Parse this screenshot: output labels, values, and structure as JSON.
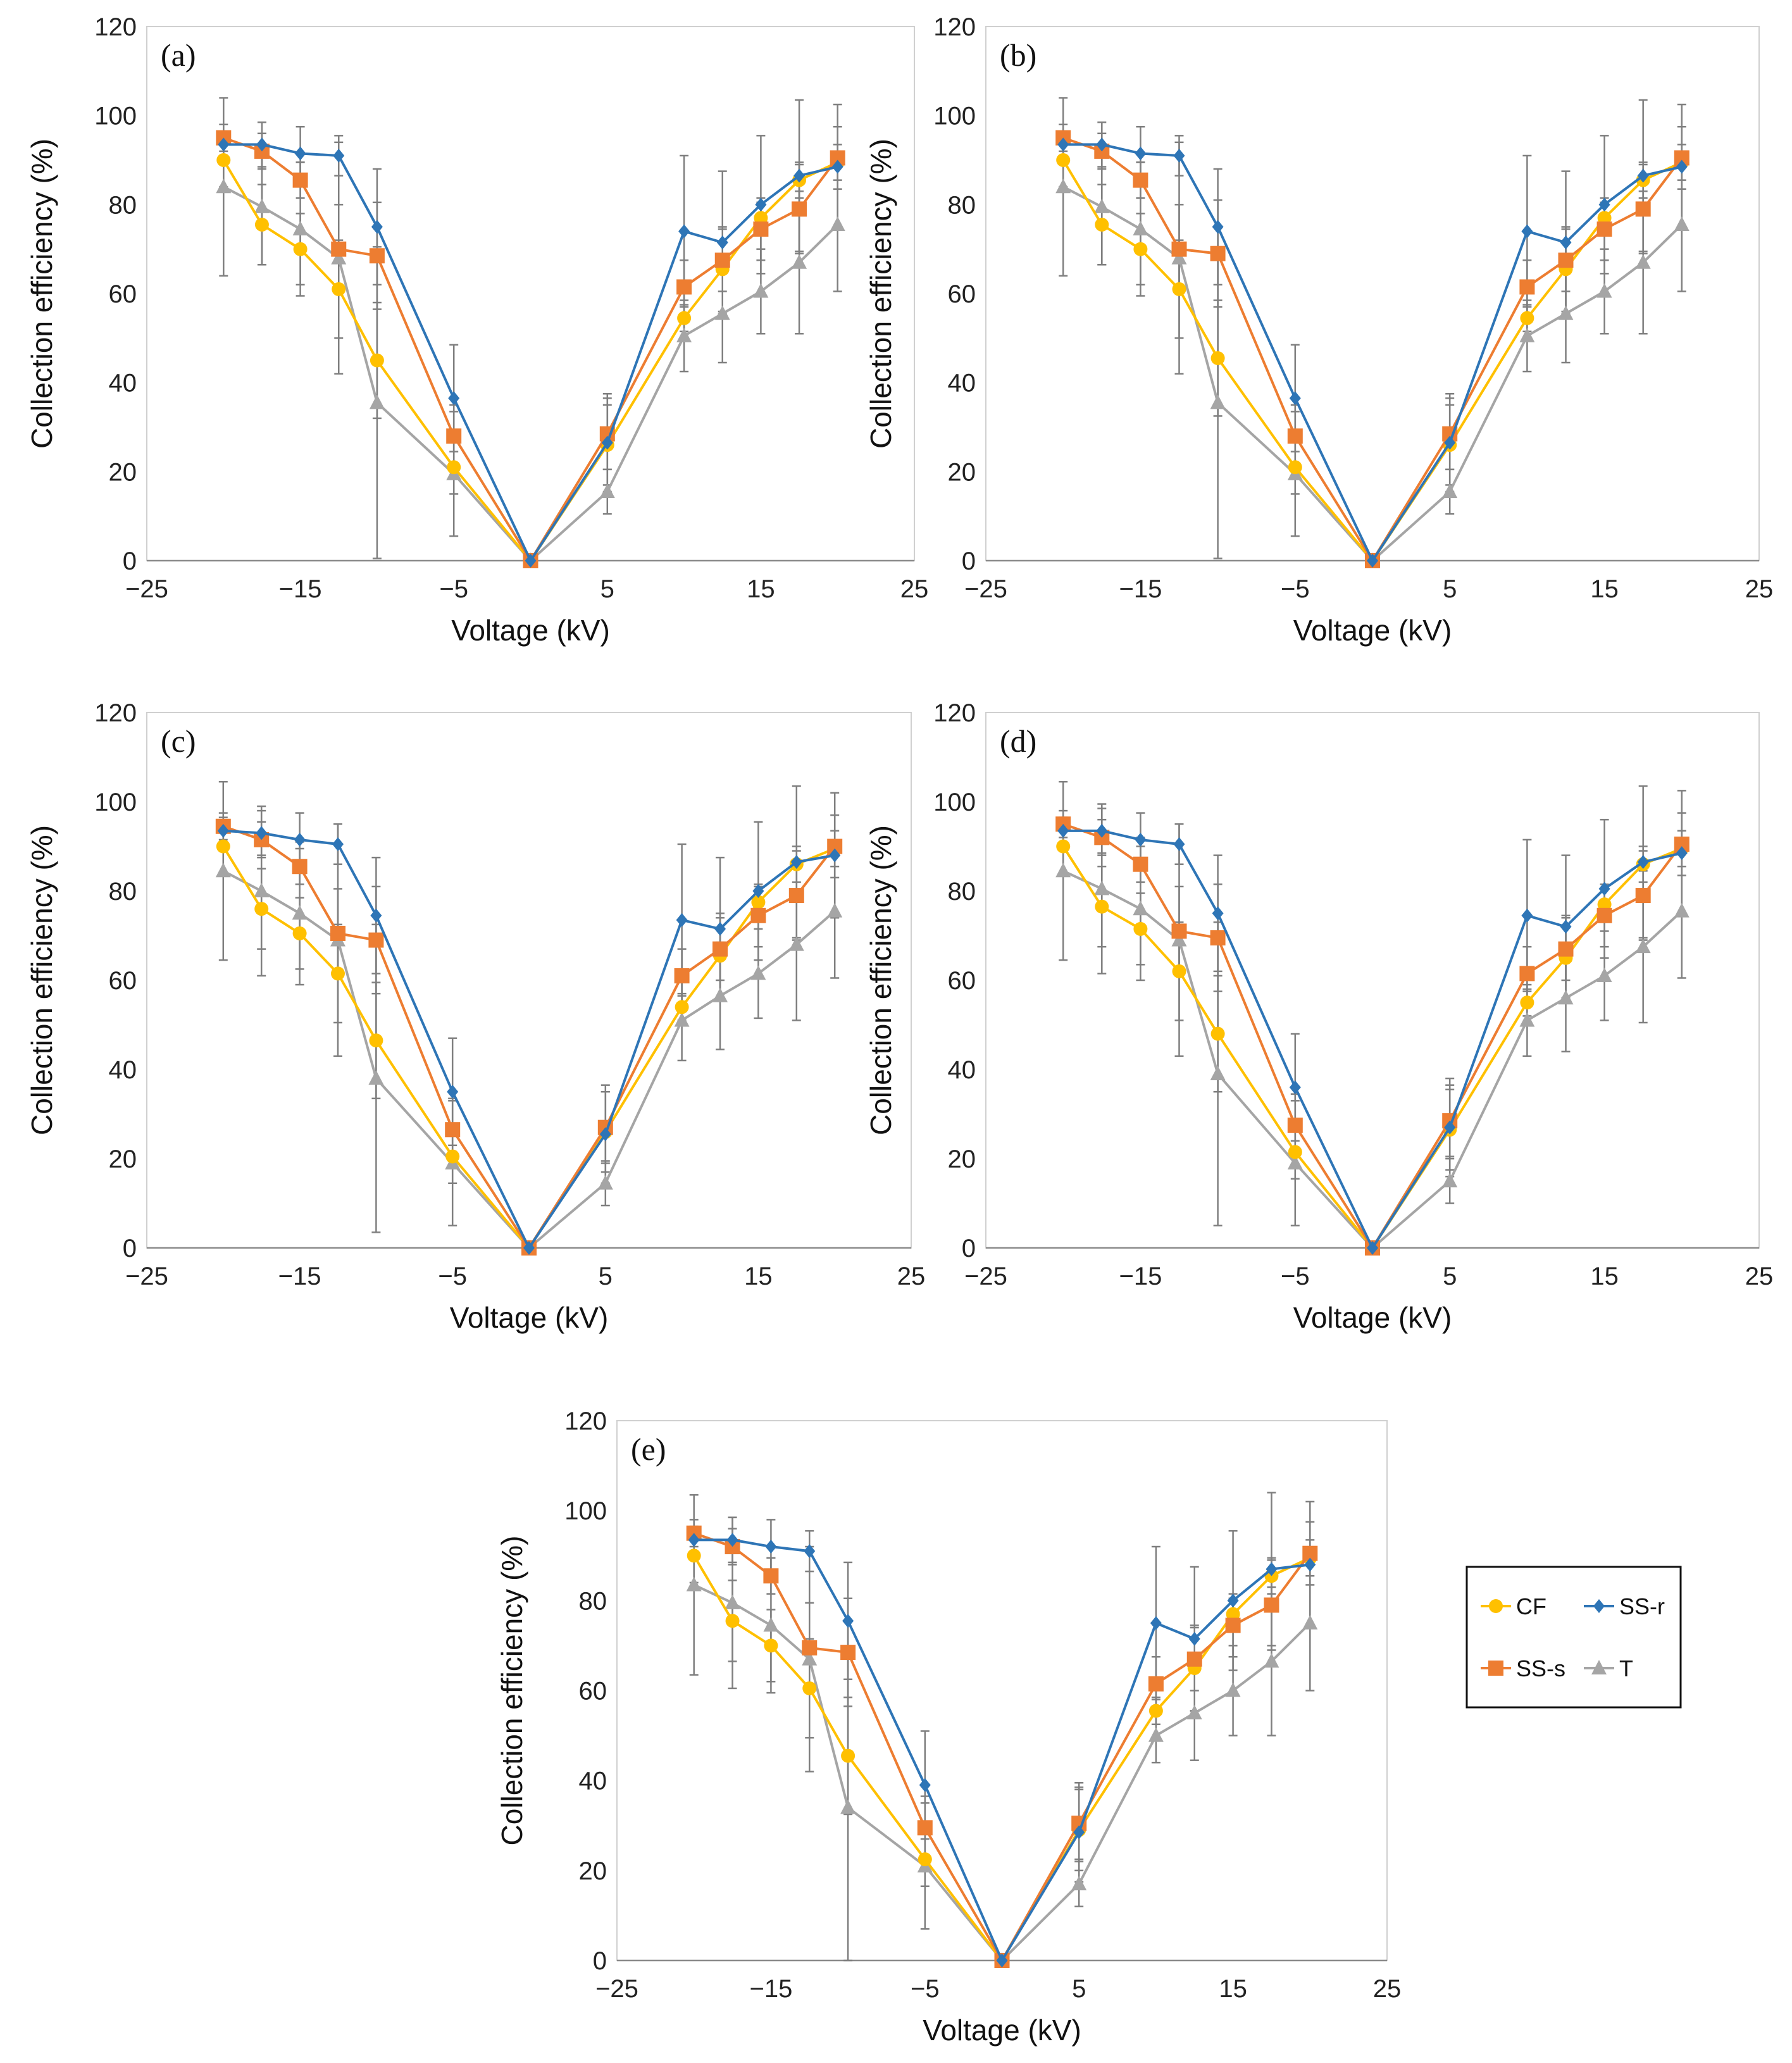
{
  "chart_data": {
    "type": "line",
    "xlabel": "Voltage (kV)",
    "ylabel": "Collection efficiency (%)",
    "xlim": [
      -25,
      25
    ],
    "ylim": [
      0,
      120
    ],
    "xticks": [
      -25,
      -15,
      -5,
      5,
      15,
      25
    ],
    "yticks": [
      0,
      20,
      40,
      60,
      80,
      100,
      120
    ],
    "x": [
      -20,
      -17.5,
      -15,
      -12.5,
      -10,
      -5,
      0,
      5,
      10,
      12.5,
      15,
      17.5,
      20
    ],
    "legend": {
      "placement": "right of panel (e)",
      "entries": [
        {
          "name": "CF",
          "color": "#FFC000",
          "marker": "circle"
        },
        {
          "name": "SS-r",
          "color": "#2E75B6",
          "marker": "diamond"
        },
        {
          "name": "SS-s",
          "color": "#ED7D31",
          "marker": "square"
        },
        {
          "name": "T",
          "color": "#A5A5A5",
          "marker": "triangle"
        }
      ]
    },
    "panels": [
      {
        "label": "(a)",
        "series": [
          {
            "name": "T",
            "values": [
              84,
              79.5,
              74.5,
              68,
              35.5,
              19.5,
              0,
              15.5,
              50.5,
              55.5,
              60.5,
              67,
              75.5
            ],
            "errors": [
              20,
              13,
              15,
              26,
              35,
              14,
              0,
              5,
              8,
              11,
              9.5,
              16,
              15
            ]
          },
          {
            "name": "CF",
            "values": [
              90,
              75.5,
              70,
              61,
              45,
              21,
              0,
              26,
              54.5,
              65.5,
              77,
              85.5,
              89.5
            ],
            "errors": [
              6,
              9,
              8,
              11,
              13,
              6,
              0,
              9,
              3,
              9.5,
              3.5,
              4,
              4
            ]
          },
          {
            "name": "SS-s",
            "values": [
              95,
              92,
              85.5,
              70,
              68.5,
              28,
              0,
              28.5,
              61.5,
              67.5,
              74.5,
              79,
              90.5
            ],
            "errors": [
              3,
              4,
              4,
              10,
              12,
              7,
              0,
              8,
              6,
              7,
              7,
              10,
              7
            ]
          },
          {
            "name": "SS-r",
            "values": [
              93.5,
              93.5,
              91.5,
              91,
              75,
              36.5,
              0,
              26.5,
              74,
              71.5,
              80,
              86.5,
              88.5
            ],
            "errors": [
              3,
              5,
              6,
              4.5,
              13,
              12,
              0,
              11,
              17,
              16,
              15.5,
              17,
              14
            ]
          }
        ]
      },
      {
        "label": "(b)",
        "series": [
          {
            "name": "T",
            "values": [
              84,
              79.5,
              74.5,
              68,
              35.5,
              19.5,
              0,
              15.5,
              50.5,
              55.5,
              60.5,
              67,
              75.5
            ],
            "errors": [
              20,
              13,
              15,
              26,
              35,
              14,
              0,
              5,
              8,
              11,
              9.5,
              16,
              15
            ]
          },
          {
            "name": "CF",
            "values": [
              90,
              75.5,
              70,
              61,
              45.5,
              21,
              0,
              26,
              54.5,
              65.5,
              77,
              85.5,
              89.5
            ],
            "errors": [
              6,
              9,
              8,
              11,
              13,
              6,
              0,
              9,
              3,
              9.5,
              3.5,
              4,
              4
            ]
          },
          {
            "name": "SS-s",
            "values": [
              95,
              92,
              85.5,
              70,
              69,
              28,
              0,
              28.5,
              61.5,
              67.5,
              74.5,
              79,
              90.5
            ],
            "errors": [
              3,
              4,
              4,
              10,
              12,
              7,
              0,
              8,
              6,
              7,
              7,
              10,
              7
            ]
          },
          {
            "name": "SS-r",
            "values": [
              93.5,
              93.5,
              91.5,
              91,
              75,
              36.5,
              0,
              26.5,
              74,
              71.5,
              80,
              86.5,
              88.5
            ],
            "errors": [
              3,
              5,
              6,
              4.5,
              13,
              12,
              0,
              11,
              17,
              16,
              15.5,
              17,
              14
            ]
          }
        ]
      },
      {
        "label": "(c)",
        "series": [
          {
            "name": "T",
            "values": [
              84.5,
              80,
              75,
              69,
              38,
              19,
              0,
              14.5,
              51,
              56.5,
              61.5,
              68,
              75.5
            ],
            "errors": [
              20,
              19,
              16,
              26,
              34.5,
              14,
              0,
              5,
              9,
              12,
              10,
              17,
              15
            ]
          },
          {
            "name": "CF",
            "values": [
              90,
              76,
              70.5,
              61.5,
              46.5,
              20.5,
              0,
              26,
              54,
              65.5,
              77.5,
              86,
              89.5
            ],
            "errors": [
              6,
              9,
              8,
              11,
              13,
              6,
              0,
              9,
              3,
              9.5,
              3.5,
              4,
              4
            ]
          },
          {
            "name": "SS-s",
            "values": [
              94.5,
              91.5,
              85.5,
              70.5,
              69,
              26.5,
              0,
              27,
              61,
              67,
              74.5,
              79,
              90
            ],
            "errors": [
              3,
              4,
              4,
              10,
              12,
              7,
              0,
              8,
              6,
              7,
              7,
              10,
              7
            ]
          },
          {
            "name": "SS-r",
            "values": [
              93.5,
              93,
              91.5,
              90.5,
              74.5,
              35,
              0,
              25.5,
              73.5,
              71.5,
              80,
              86.5,
              88
            ],
            "errors": [
              3,
              5,
              6,
              4.5,
              13,
              12,
              0,
              11,
              17,
              16,
              15.5,
              17,
              14
            ]
          }
        ]
      },
      {
        "label": "(d)",
        "series": [
          {
            "name": "T",
            "values": [
              84.5,
              80.5,
              76,
              69,
              39,
              19,
              0,
              15,
              51,
              56,
              61,
              67.5,
              75.5
            ],
            "errors": [
              20,
              19,
              16,
              26,
              34,
              14,
              0,
              5,
              8,
              12,
              10,
              17,
              15
            ]
          },
          {
            "name": "CF",
            "values": [
              90,
              76.5,
              71.5,
              62,
              48,
              21.5,
              0,
              26.5,
              55,
              65,
              77,
              86,
              89.5
            ],
            "errors": [
              6,
              9,
              8,
              11,
              13,
              6,
              0,
              9,
              3,
              9.5,
              3.5,
              4,
              4
            ]
          },
          {
            "name": "SS-s",
            "values": [
              95,
              92,
              86,
              71,
              69.5,
              27.5,
              0,
              28.5,
              61.5,
              67,
              74.5,
              79,
              90.5
            ],
            "errors": [
              3,
              4,
              4,
              10,
              12,
              7,
              0,
              8,
              6,
              7,
              7,
              10,
              7
            ]
          },
          {
            "name": "SS-r",
            "values": [
              93.5,
              93.5,
              91.5,
              90.5,
              75,
              36,
              0,
              27,
              74.5,
              72,
              80.5,
              86.5,
              88.5
            ],
            "errors": [
              3,
              5,
              6,
              4.5,
              13,
              12,
              0,
              11,
              17,
              16,
              15.5,
              17,
              14
            ]
          }
        ]
      },
      {
        "label": "(e)",
        "series": [
          {
            "name": "T",
            "values": [
              83.5,
              79.5,
              74.5,
              67,
              34,
              21,
              0,
              17,
              50,
              55,
              60,
              66.5,
              75
            ],
            "errors": [
              20,
              19,
              15,
              25,
              34,
              14,
              0,
              5,
              6,
              10.5,
              10,
              16.5,
              15
            ]
          },
          {
            "name": "CF",
            "values": [
              90,
              75.5,
              70,
              60.5,
              45.5,
              22.5,
              0,
              29,
              55.5,
              65,
              77,
              85.5,
              89.5
            ],
            "errors": [
              6,
              9,
              8,
              11,
              13,
              6,
              0,
              9,
              3,
              9.5,
              3.5,
              4,
              4
            ]
          },
          {
            "name": "SS-s",
            "values": [
              95,
              92,
              85.5,
              69.5,
              68.5,
              29.5,
              0,
              30.5,
              61.5,
              67,
              74.5,
              79,
              90.5
            ],
            "errors": [
              3,
              4,
              4,
              10,
              12,
              7,
              0,
              8,
              6,
              7,
              7,
              10,
              7
            ]
          },
          {
            "name": "SS-r",
            "values": [
              93.5,
              93.5,
              92,
              91,
              75.5,
              39,
              0,
              28.5,
              75,
              71.5,
              80,
              87,
              88
            ],
            "errors": [
              3,
              5,
              6,
              4.5,
              13,
              12,
              0,
              11,
              17,
              16,
              15.5,
              17,
              14
            ]
          }
        ]
      }
    ]
  }
}
